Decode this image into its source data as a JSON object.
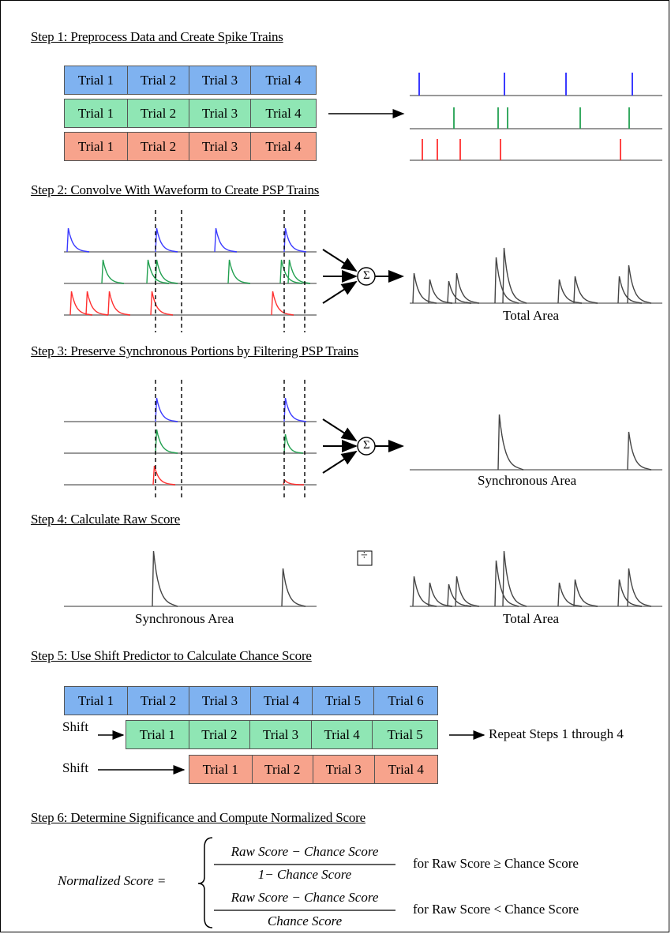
{
  "headings": {
    "step1": "Step 1: Preprocess Data and Create Spike Trains",
    "step2": "Step 2: Convolve With Waveform to Create PSP Trains",
    "step3": "Step 3: Preserve Synchronous Portions by Filtering PSP Trains",
    "step4": "Step 4: Calculate Raw Score",
    "step5": "Step 5: Use Shift Predictor to Calculate Chance Score",
    "step6": "Step 6: Determine Significance and Compute Normalized Score"
  },
  "step1": {
    "rows": [
      {
        "color": "blue",
        "cells": [
          "Trial 1",
          "Trial 2",
          "Trial 3",
          "Trial 4"
        ]
      },
      {
        "color": "green",
        "cells": [
          "Trial 1",
          "Trial 2",
          "Trial 3",
          "Trial 4"
        ]
      },
      {
        "color": "red",
        "cells": [
          "Trial 1",
          "Trial 2",
          "Trial 3",
          "Trial 4"
        ]
      }
    ]
  },
  "labels": {
    "total_area": "Total Area",
    "synchronous_area": "Synchronous Area",
    "sum_symbol": "Σ",
    "divide_symbol": "÷"
  },
  "step5": {
    "row1": [
      "Trial 1",
      "Trial 2",
      "Trial 3",
      "Trial 4",
      "Trial 5",
      "Trial 6"
    ],
    "row2": [
      "Trial 1",
      "Trial 2",
      "Trial 3",
      "Trial 4",
      "Trial 5"
    ],
    "row3": [
      "Trial 1",
      "Trial 2",
      "Trial 3",
      "Trial 4"
    ],
    "shift_label": "Shift",
    "repeat_label": "Repeat Steps 1 through 4"
  },
  "step6": {
    "lhs": "Normalized Score =",
    "num": "Raw Score − Chance Score",
    "den1": "1− Chance Score",
    "den2": "Chance Score",
    "cond1": "for Raw Score ≥ Chance Score",
    "cond2": "for Raw Score < Chance Score"
  },
  "colors": {
    "blue_fill": "#7fb2f0",
    "green_fill": "#8fe6b4",
    "red_fill": "#f7a38c",
    "blue_line": "#3a3aff",
    "green_line": "#22a050",
    "red_line": "#ff3030",
    "sum_line": "#444444",
    "axis_line": "#999999"
  }
}
